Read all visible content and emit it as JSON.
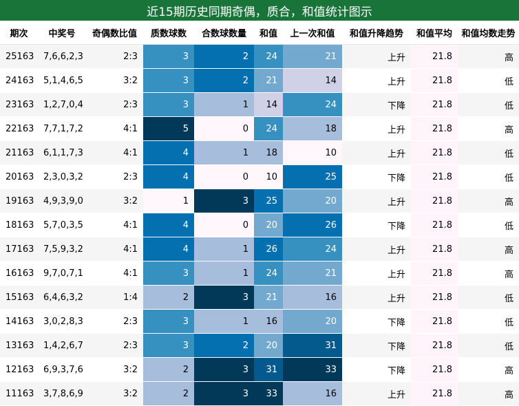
{
  "title": "近15期历史同期奇偶，质合，和值统计图示",
  "columns": [
    "期次",
    "中奖号",
    "奇偶数比值",
    "质数球数",
    "合数球数量",
    "和值",
    "上一次和值",
    "和值升降趋势",
    "和值平均",
    "和值均数走势"
  ],
  "chart_data": {
    "type": "table",
    "title": "近15期历史同期奇偶，质合，和值统计图示",
    "columns": [
      "期次",
      "中奖号",
      "奇偶数比值",
      "质数球数",
      "合数球数量",
      "和值",
      "上一次和值",
      "和值升降趋势",
      "和值平均",
      "和值均数走势"
    ],
    "rows": [
      [
        "25163",
        "7,6,6,2,3",
        "2:3",
        3,
        2,
        24,
        21,
        "上升",
        "21.8",
        "高"
      ],
      [
        "24163",
        "5,1,4,6,5",
        "3:2",
        3,
        2,
        21,
        14,
        "上升",
        "21.8",
        "低"
      ],
      [
        "23163",
        "1,2,7,0,4",
        "2:3",
        3,
        1,
        14,
        24,
        "下降",
        "21.8",
        "低"
      ],
      [
        "22163",
        "7,7,1,7,2",
        "4:1",
        5,
        0,
        24,
        18,
        "上升",
        "21.8",
        "高"
      ],
      [
        "21163",
        "6,1,1,7,3",
        "4:1",
        4,
        1,
        18,
        10,
        "上升",
        "21.8",
        "低"
      ],
      [
        "20163",
        "2,3,0,3,2",
        "2:3",
        4,
        0,
        10,
        25,
        "下降",
        "21.8",
        "低"
      ],
      [
        "19163",
        "4,9,3,9,0",
        "3:2",
        1,
        3,
        25,
        20,
        "上升",
        "21.8",
        "高"
      ],
      [
        "18163",
        "5,7,0,3,5",
        "4:1",
        4,
        0,
        20,
        26,
        "下降",
        "21.8",
        "低"
      ],
      [
        "17163",
        "7,5,9,3,2",
        "4:1",
        4,
        1,
        26,
        24,
        "上升",
        "21.8",
        "高"
      ],
      [
        "16163",
        "9,7,0,7,1",
        "4:1",
        3,
        1,
        24,
        21,
        "上升",
        "21.8",
        "高"
      ],
      [
        "15163",
        "6,4,6,3,2",
        "1:4",
        2,
        3,
        21,
        16,
        "上升",
        "21.8",
        "低"
      ],
      [
        "14163",
        "3,0,2,8,3",
        "2:3",
        3,
        1,
        16,
        20,
        "下降",
        "21.8",
        "低"
      ],
      [
        "13163",
        "1,4,2,6,7",
        "2:3",
        3,
        2,
        20,
        31,
        "下降",
        "21.8",
        "低"
      ],
      [
        "12163",
        "6,9,3,7,6",
        "3:2",
        2,
        3,
        31,
        33,
        "下降",
        "21.8",
        "高"
      ],
      [
        "11163",
        "3,7,8,6,9",
        "3:2",
        2,
        3,
        33,
        16,
        "上升",
        "21.8",
        "高"
      ]
    ],
    "heatmap_columns": [
      3,
      4,
      5,
      6
    ],
    "colors": {
      "header_bg": "#19743a",
      "scale": [
        "#fff7fb",
        "#d0d1e6",
        "#a6bddb",
        "#74a9cf",
        "#3690c0",
        "#0570b0",
        "#045a8d",
        "#023858"
      ],
      "avg_bg": "#fff4fa"
    }
  }
}
